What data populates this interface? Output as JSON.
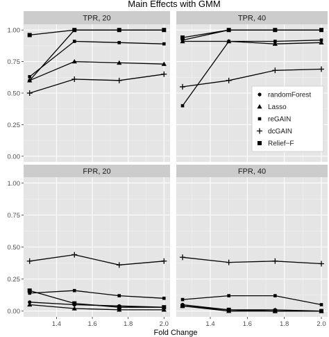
{
  "chart_data": {
    "type": "line",
    "title": "Main Effects with GMM",
    "xlabel": "Fold Change",
    "ylabel": "",
    "x": [
      1.25,
      1.5,
      1.75,
      2.0
    ],
    "xlim": [
      1.25,
      2.0
    ],
    "ylim": [
      0,
      1
    ],
    "x_ticks": [
      "1.4",
      "1.6",
      "1.8",
      "2.0"
    ],
    "y_ticks": [
      "0.00",
      "0.25",
      "0.50",
      "0.75",
      "1.00"
    ],
    "grid": true,
    "legend_position": "inside-right of TPR, 40 panel",
    "legend": [
      {
        "name": "randomForest",
        "marker": "circle"
      },
      {
        "name": "Lasso",
        "marker": "triangle"
      },
      {
        "name": "reGAIN",
        "marker": "small-square"
      },
      {
        "name": "dcGAIN",
        "marker": "plus"
      },
      {
        "name": "Relief−F",
        "marker": "square"
      }
    ],
    "panels": [
      {
        "strip": "TPR, 20",
        "series": [
          {
            "values": [
              0.6,
              1.0,
              1.0,
              1.0
            ]
          },
          {
            "values": [
              0.6,
              0.75,
              0.74,
              0.73
            ]
          },
          {
            "values": [
              0.63,
              0.91,
              0.9,
              0.89
            ]
          },
          {
            "values": [
              0.5,
              0.61,
              0.6,
              0.65
            ]
          },
          {
            "values": [
              0.96,
              1.0,
              1.0,
              1.0
            ]
          }
        ]
      },
      {
        "strip": "TPR, 40",
        "series": [
          {
            "values": [
              0.92,
              1.0,
              1.0,
              1.0
            ]
          },
          {
            "values": [
              0.91,
              0.91,
              0.89,
              0.9
            ]
          },
          {
            "values": [
              0.4,
              0.91,
              0.91,
              0.92
            ]
          },
          {
            "values": [
              0.55,
              0.6,
              0.68,
              0.69
            ]
          },
          {
            "values": [
              0.94,
              1.0,
              1.0,
              1.0
            ]
          }
        ]
      },
      {
        "strip": "FPR, 20",
        "series": [
          {
            "values": [
              0.07,
              0.05,
              0.04,
              0.03
            ]
          },
          {
            "values": [
              0.05,
              0.02,
              0.01,
              0.01
            ]
          },
          {
            "values": [
              0.14,
              0.16,
              0.12,
              0.1
            ]
          },
          {
            "values": [
              0.39,
              0.44,
              0.36,
              0.39
            ]
          },
          {
            "values": [
              0.16,
              0.06,
              0.03,
              0.03
            ]
          }
        ]
      },
      {
        "strip": "FPR, 40",
        "series": [
          {
            "values": [
              0.05,
              0.01,
              0.01,
              0.0
            ]
          },
          {
            "values": [
              0.04,
              0.0,
              0.0,
              0.0
            ]
          },
          {
            "values": [
              0.09,
              0.12,
              0.12,
              0.05
            ]
          },
          {
            "values": [
              0.42,
              0.38,
              0.39,
              0.37
            ]
          },
          {
            "values": [
              0.04,
              0.01,
              0.0,
              0.0
            ]
          }
        ]
      }
    ]
  }
}
